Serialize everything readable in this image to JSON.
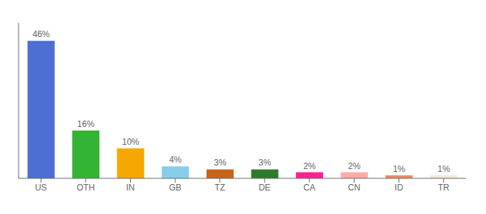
{
  "chart_data": {
    "type": "bar",
    "categories": [
      "US",
      "OTH",
      "IN",
      "GB",
      "TZ",
      "DE",
      "CA",
      "CN",
      "ID",
      "TR"
    ],
    "values": [
      46,
      16,
      10,
      4,
      3,
      3,
      2,
      2,
      1,
      1
    ],
    "value_labels": [
      "46%",
      "16%",
      "10%",
      "4%",
      "3%",
      "3%",
      "2%",
      "2%",
      "1%",
      "1%"
    ],
    "colors": [
      "#4d6fd4",
      "#34b334",
      "#f5a800",
      "#87ceeb",
      "#c8641a",
      "#2d7a2d",
      "#ff1f8f",
      "#ffaaaa",
      "#e8896a",
      "#f0ead8"
    ],
    "ylim": [
      0,
      52
    ],
    "tick_labels": "x",
    "data_labels": true,
    "grid": false
  }
}
